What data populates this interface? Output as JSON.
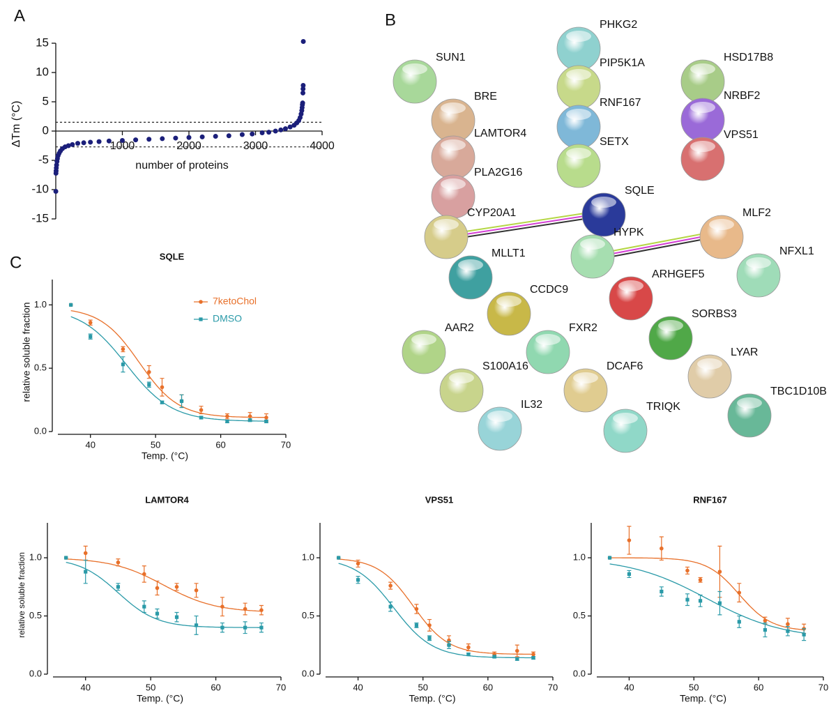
{
  "panel_labels": [
    "A",
    "B",
    "C"
  ],
  "chart_data": [
    {
      "type": "scatter",
      "xlabel": "number of proteins",
      "ylabel": "ΔTm (°C)",
      "color": "#1b1f7a",
      "x": [
        1,
        3,
        5,
        8,
        12,
        18,
        25,
        35,
        50,
        70,
        100,
        140,
        190,
        250,
        330,
        420,
        520,
        650,
        800,
        1000,
        1200,
        1400,
        1600,
        1800,
        2000,
        2200,
        2400,
        2600,
        2800,
        2950,
        3100,
        3200,
        3300,
        3380,
        3450,
        3520,
        3580,
        3620,
        3650,
        3670,
        3685,
        3695,
        3700,
        3704,
        3708,
        3712,
        3714,
        3716,
        3718
      ],
      "values": [
        -10.3,
        -7.2,
        -6.8,
        -6.3,
        -5.8,
        -5.2,
        -4.7,
        -4.2,
        -3.8,
        -3.4,
        -3.0,
        -2.7,
        -2.5,
        -2.3,
        -2.1,
        -2.0,
        -1.9,
        -1.8,
        -1.7,
        -1.6,
        -1.5,
        -1.4,
        -1.3,
        -1.2,
        -1.1,
        -1.0,
        -0.9,
        -0.8,
        -0.6,
        -0.5,
        -0.3,
        -0.2,
        0.0,
        0.2,
        0.4,
        0.7,
        1.0,
        1.4,
        1.8,
        2.3,
        2.9,
        3.5,
        4.0,
        4.5,
        4.8,
        6.5,
        7.2,
        7.8,
        15.3
      ],
      "xlim": [
        0,
        4000
      ],
      "xticks": [
        1000,
        2000,
        3000,
        4000
      ],
      "ylim": [
        -15,
        15
      ],
      "yticks": [
        -15,
        -10,
        -5,
        0,
        5,
        10,
        15
      ],
      "reference_lines": [
        1.5,
        -2.7
      ]
    },
    {
      "type": "line",
      "title": "SQLE",
      "xlabel": "Temp. (°C)",
      "ylabel": "relative soluble fraction",
      "legend": "upper right",
      "x": [
        37,
        40,
        45,
        49,
        51,
        54,
        57,
        61,
        64.5,
        67
      ],
      "xlim": [
        35,
        70
      ],
      "xticks": [
        40,
        50,
        60,
        70
      ],
      "ylim": [
        0,
        1.2
      ],
      "yticks": [
        {
          "value": 0,
          "label": "0.0"
        },
        0.5,
        {
          "value": 1,
          "label": "1.0"
        }
      ],
      "series": [
        {
          "name": "7ketoChol",
          "color": "#e8702a",
          "values": [
            1.0,
            0.86,
            0.65,
            0.47,
            0.35,
            0.24,
            0.17,
            0.12,
            0.12,
            0.11
          ],
          "errors": [
            0,
            0.02,
            0.02,
            0.05,
            0.07,
            0.05,
            0.03,
            0.02,
            0.03,
            0.03
          ],
          "fit": {
            "top": 0.98,
            "bottom": 0.11,
            "tm": 47.5,
            "slope": 3
          }
        },
        {
          "name": "DMSO",
          "color": "#2a9aa8",
          "values": [
            1.0,
            0.75,
            0.53,
            0.37,
            0.23,
            0.24,
            0.11,
            0.08,
            0.09,
            0.08
          ],
          "errors": [
            0,
            0.02,
            0.06,
            0.02,
            0.01,
            0.05,
            0.01,
            0.01,
            0.01,
            0.01
          ],
          "fit": {
            "top": 0.98,
            "bottom": 0.08,
            "tm": 45.5,
            "slope": 3.5
          }
        }
      ]
    },
    {
      "type": "line",
      "title": "LAMTOR4",
      "xlabel": "Temp. (°C)",
      "ylabel": "relative soluble fraction",
      "x": [
        37,
        40,
        45,
        49,
        51,
        54,
        57,
        61,
        64.5,
        67
      ],
      "xlim": [
        35,
        70
      ],
      "xticks": [
        40,
        50,
        60,
        70
      ],
      "ylim": [
        0,
        1.3
      ],
      "yticks": [
        {
          "value": 0,
          "label": "0.0"
        },
        0.5,
        {
          "value": 1,
          "label": "1.0"
        }
      ],
      "series": [
        {
          "color": "#e8702a",
          "values": [
            1.0,
            1.04,
            0.96,
            0.86,
            0.74,
            0.75,
            0.72,
            0.58,
            0.56,
            0.55
          ],
          "errors": [
            0,
            0.06,
            0.03,
            0.07,
            0.06,
            0.03,
            0.06,
            0.08,
            0.05,
            0.04
          ],
          "fit": {
            "top": 1.0,
            "bottom": 0.53,
            "tm": 52,
            "slope": 4
          }
        },
        {
          "color": "#2a9aa8",
          "values": [
            1.0,
            0.88,
            0.75,
            0.58,
            0.52,
            0.49,
            0.42,
            0.4,
            0.4,
            0.4
          ],
          "errors": [
            0,
            0.1,
            0.03,
            0.05,
            0.04,
            0.04,
            0.08,
            0.04,
            0.05,
            0.04
          ],
          "fit": {
            "top": 1.0,
            "bottom": 0.4,
            "tm": 45,
            "slope": 3
          }
        }
      ]
    },
    {
      "type": "line",
      "title": "VPS51",
      "xlabel": "Temp. (°C)",
      "x": [
        37,
        40,
        45,
        49,
        51,
        54,
        57,
        61,
        64.5,
        67
      ],
      "xlim": [
        35,
        70
      ],
      "xticks": [
        40,
        50,
        60,
        70
      ],
      "ylim": [
        0,
        1.3
      ],
      "yticks": [
        {
          "value": 0,
          "label": "0.0"
        },
        0.5,
        {
          "value": 1,
          "label": "1.0"
        }
      ],
      "series": [
        {
          "color": "#e8702a",
          "values": [
            1.0,
            0.95,
            0.76,
            0.56,
            0.42,
            0.29,
            0.23,
            0.17,
            0.2,
            0.17
          ],
          "errors": [
            0,
            0.03,
            0.03,
            0.04,
            0.05,
            0.04,
            0.03,
            0.02,
            0.05,
            0.02
          ],
          "fit": {
            "top": 1.0,
            "bottom": 0.17,
            "tm": 48.5,
            "slope": 2.7
          }
        },
        {
          "color": "#2a9aa8",
          "values": [
            1.0,
            0.81,
            0.58,
            0.42,
            0.31,
            0.25,
            0.17,
            0.15,
            0.13,
            0.14
          ],
          "errors": [
            0,
            0.03,
            0.04,
            0.02,
            0.02,
            0.03,
            0.01,
            0.01,
            0.01,
            0.01
          ],
          "fit": {
            "top": 1.0,
            "bottom": 0.14,
            "tm": 45.5,
            "slope": 3
          }
        }
      ]
    },
    {
      "type": "line",
      "title": "RNF167",
      "xlabel": "Temp. (°C)",
      "x": [
        37,
        40,
        45,
        49,
        51,
        54,
        57,
        61,
        64.5,
        67
      ],
      "xlim": [
        35,
        70
      ],
      "xticks": [
        40,
        50,
        60,
        70
      ],
      "ylim": [
        0,
        1.3
      ],
      "yticks": [
        {
          "value": 0,
          "label": "0.0"
        },
        0.5,
        {
          "value": 1,
          "label": "1.0"
        }
      ],
      "series": [
        {
          "color": "#e8702a",
          "values": [
            1.0,
            1.15,
            1.08,
            0.89,
            0.81,
            0.88,
            0.7,
            0.46,
            0.43,
            0.39
          ],
          "errors": [
            0,
            0.12,
            0.1,
            0.03,
            0.02,
            0.22,
            0.08,
            0.03,
            0.05,
            0.04
          ],
          "fit": {
            "top": 1.0,
            "bottom": 0.37,
            "tm": 57,
            "slope": 2.5
          }
        },
        {
          "color": "#2a9aa8",
          "values": [
            1.0,
            0.86,
            0.71,
            0.64,
            0.63,
            0.61,
            0.45,
            0.38,
            0.37,
            0.34
          ],
          "errors": [
            0,
            0.03,
            0.04,
            0.05,
            0.05,
            0.1,
            0.05,
            0.06,
            0.04,
            0.05
          ],
          "fit": {
            "top": 1.0,
            "bottom": 0.3,
            "tm": 52,
            "slope": 6
          }
        }
      ]
    }
  ],
  "network": {
    "nodes": [
      {
        "label": "PHKG2",
        "color": "#8fd1cf"
      },
      {
        "label": "PIP5K1A",
        "color": "#c7d98a"
      },
      {
        "label": "RNF167",
        "color": "#7fb8d8"
      },
      {
        "label": "SETX",
        "color": "#b8dc8c"
      },
      {
        "label": "SUN1",
        "color": "#a8d89a"
      },
      {
        "label": "BRE",
        "color": "#d9b48f"
      },
      {
        "label": "LAMTOR4",
        "color": "#d8a99a"
      },
      {
        "label": "PLA2G16",
        "color": "#d8a0a0"
      },
      {
        "label": "CYP20A1",
        "color": "#d6cc8a"
      },
      {
        "label": "SQLE",
        "color": "#2a3a9a"
      },
      {
        "label": "HYPK",
        "color": "#a6deb0"
      },
      {
        "label": "MLF2",
        "color": "#e8b98a"
      },
      {
        "label": "HSD17B8",
        "color": "#a8cc88"
      },
      {
        "label": "NRBF2",
        "color": "#9a6ad8"
      },
      {
        "label": "VPS51",
        "color": "#d87070"
      },
      {
        "label": "NFXL1",
        "color": "#9fdcb8"
      },
      {
        "label": "MLLT1",
        "color": "#3fa0a0"
      },
      {
        "label": "CCDC9",
        "color": "#c8b848"
      },
      {
        "label": "ARHGEF5",
        "color": "#d84848"
      },
      {
        "label": "SORBS3",
        "color": "#50a848"
      },
      {
        "label": "AAR2",
        "color": "#b0d488"
      },
      {
        "label": "FXR2",
        "color": "#90d8b0"
      },
      {
        "label": "S100A16",
        "color": "#c8d48c"
      },
      {
        "label": "DCAF6",
        "color": "#e0cc90"
      },
      {
        "label": "LYAR",
        "color": "#e0cca8"
      },
      {
        "label": "IL32",
        "color": "#98d4d8"
      },
      {
        "label": "TRIQK",
        "color": "#90d8c8"
      },
      {
        "label": "TBC1D10B",
        "color": "#68b898"
      }
    ]
  }
}
